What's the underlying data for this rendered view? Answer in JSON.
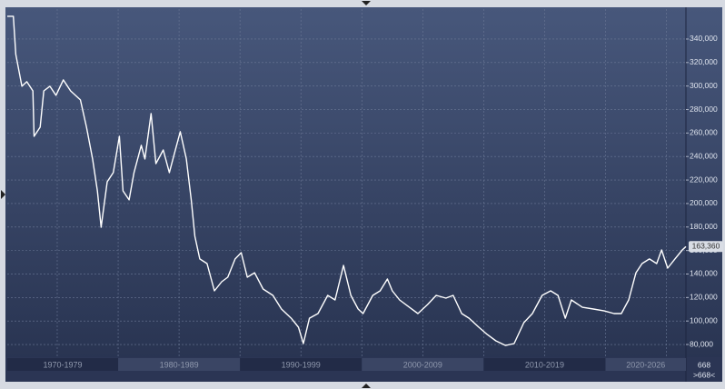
{
  "chart_data": {
    "type": "line",
    "color": "#ffffff",
    "x": [
      1970.9,
      1971.4,
      1971.6,
      1972.1,
      1972.5,
      1973.0,
      1973.1,
      1973.6,
      1973.9,
      1974.4,
      1974.9,
      1975.5,
      1976.1,
      1976.9,
      1977.4,
      1977.9,
      1978.3,
      1978.6,
      1979.1,
      1979.6,
      1980.1,
      1980.4,
      1980.9,
      1981.3,
      1981.9,
      1982.2,
      1982.7,
      1983.1,
      1983.7,
      1984.2,
      1984.6,
      1985.1,
      1985.6,
      1986.0,
      1986.3,
      1986.7,
      1987.3,
      1987.9,
      1988.5,
      1989.0,
      1989.6,
      1990.1,
      1990.6,
      1991.2,
      1991.9,
      1992.7,
      1993.4,
      1994.2,
      1994.8,
      1995.2,
      1995.7,
      1996.4,
      1997.2,
      1997.8,
      1998.5,
      1999.1,
      1999.7,
      2000.1,
      2000.9,
      2001.5,
      2002.1,
      2002.5,
      2003.1,
      2003.9,
      2004.6,
      2005.4,
      2006.1,
      2006.9,
      2007.5,
      2008.2,
      2008.8,
      2009.6,
      2010.3,
      2011.0,
      2011.8,
      2012.5,
      2013.3,
      2014.0,
      2014.8,
      2015.5,
      2016.1,
      2016.7,
      2017.2,
      2018.1,
      2019.0,
      2019.9,
      2020.7,
      2021.3,
      2021.9,
      2022.5,
      2023.0,
      2023.6,
      2024.2,
      2024.6,
      2025.1,
      2025.7,
      2026.3,
      2026.6
    ],
    "values": [
      359400,
      359400,
      326900,
      299800,
      303700,
      295900,
      257200,
      265000,
      295900,
      299800,
      292100,
      305200,
      295900,
      288200,
      265000,
      237900,
      210800,
      179800,
      218500,
      226300,
      257200,
      210800,
      203100,
      226300,
      249500,
      237900,
      276600,
      234000,
      245600,
      226300,
      241800,
      261100,
      237900,
      203100,
      172100,
      152800,
      148900,
      125700,
      133400,
      137300,
      152800,
      158200,
      137300,
      141100,
      127200,
      121800,
      110200,
      102400,
      94700,
      80800,
      102400,
      106300,
      121800,
      117900,
      147300,
      121800,
      110200,
      106300,
      121800,
      125700,
      135700,
      125700,
      117900,
      111700,
      106300,
      114100,
      121800,
      119500,
      121800,
      106300,
      102400,
      94700,
      88500,
      83100,
      79200,
      80800,
      98600,
      106300,
      121800,
      125700,
      121800,
      102400,
      117900,
      111700,
      110200,
      108600,
      106300,
      106300,
      117900,
      141100,
      148900,
      152800,
      148900,
      160500,
      145000,
      152800,
      160500,
      163360
    ],
    "last_value_label": "163,360",
    "xlim": [
      1970.9,
      2026.6
    ],
    "xticks": [
      1975,
      1980,
      1985,
      1990,
      1995,
      2000,
      2005,
      2010,
      2015,
      2020,
      2025
    ],
    "ylim": [
      69200,
      365500
    ],
    "yticks": [
      {
        "value": 80000,
        "label": "80,000"
      },
      {
        "value": 100000,
        "label": "100,000"
      },
      {
        "value": 120000,
        "label": "120,000"
      },
      {
        "value": 140000,
        "label": "140,000"
      },
      {
        "value": 160000,
        "label": "160,000"
      },
      {
        "value": 180000,
        "label": "180,000"
      },
      {
        "value": 200000,
        "label": "200,000"
      },
      {
        "value": 220000,
        "label": "220,000"
      },
      {
        "value": 240000,
        "label": "240,000"
      },
      {
        "value": 260000,
        "label": "260,000"
      },
      {
        "value": 280000,
        "label": "280,000"
      },
      {
        "value": 300000,
        "label": "300,000"
      },
      {
        "value": 320000,
        "label": "320,000"
      },
      {
        "value": 340000,
        "label": "340,000"
      }
    ],
    "grid": true,
    "x_bands": [
      {
        "label": "1970-1979",
        "start": 1970,
        "end": 1980
      },
      {
        "label": "1980-1989",
        "start": 1980,
        "end": 1990
      },
      {
        "label": "1990-1999",
        "start": 1990,
        "end": 2000
      },
      {
        "label": "2000-2009",
        "start": 2000,
        "end": 2010
      },
      {
        "label": "2010-2019",
        "start": 2010,
        "end": 2020
      },
      {
        "label": "2020-2026",
        "start": 2020,
        "end": 2030
      }
    ],
    "corner_labels": [
      "668",
      ">668<"
    ]
  }
}
